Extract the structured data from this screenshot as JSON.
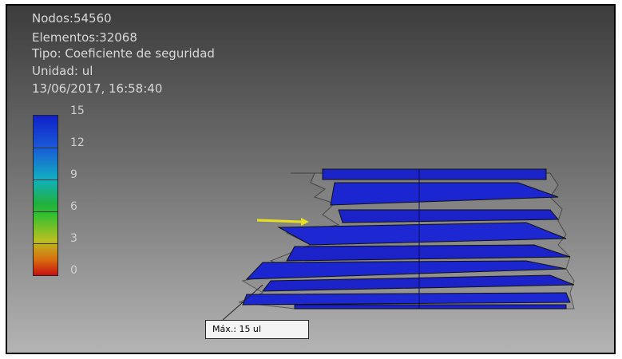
{
  "info": {
    "nodes": "Nodos:54560",
    "elements": "Elementos:32068",
    "type": "Tipo: Coeficiente de seguridad",
    "unit": "Unidad: ul",
    "timestamp": "13/06/2017, 16:58:40"
  },
  "legend": {
    "ticks": [
      "15",
      "12",
      "9",
      "6",
      "3",
      "0"
    ]
  },
  "max_probe": {
    "label": "Máx.: 15 ul"
  }
}
